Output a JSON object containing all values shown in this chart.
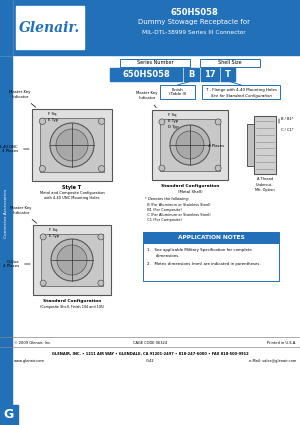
{
  "title_line1": "650HS058",
  "title_line2": "Dummy Stowage Receptacle for",
  "title_line3": "MIL-DTL-38999 Series III Connector",
  "header_bg": "#2170b8",
  "header_text_color": "#ffffff",
  "logo_text": "Glenair.",
  "sidebar_text": "Connector Accessories",
  "sidebar_bg": "#2170b8",
  "part_number_box": "650HS058",
  "finish_box": "B",
  "shell_size_box": "17",
  "style_box": "T",
  "series_number_label": "Series Number",
  "shell_size_label": "Shell Size",
  "finish_label": "Finish\n(Table II)",
  "style_note1": "T - Flange with 4-40 Mounting Holes",
  "style_note2": "See for Standard Configuration",
  "app_notes_title": "APPLICATION NOTES",
  "app_note_1": "See applicable Military Specification for complete\n     dimensions.",
  "app_note_2": "Metric dimensions (mm) are indicated in parentheses.",
  "footer_line1": "© 2009 Glenair, Inc.",
  "footer_cage": "CAGE CODE 06324",
  "footer_printed": "Printed in U.S.A.",
  "footer_line2": "GLENAIR, INC. • 1211 AIR WAY • GLENDALE, CA 91201-2497 • 818-247-6000 • FAX 818-500-9912",
  "footer_line3": "www.glenair.com",
  "footer_page": "G-42",
  "footer_email": "e-Mail: sales@glenair.com",
  "page_letter": "G",
  "page_letter_bg": "#2170b8",
  "box_border": "#2170b8",
  "body_bg": "#ffffff",
  "diag_outer": "#e0e0e0",
  "diag_inner": "#c8c8c8",
  "diag_circle": "#b8b8b8",
  "diag_circle2": "#a8a8a8",
  "diag_edge": "#555555",
  "diag_line": "#333333"
}
